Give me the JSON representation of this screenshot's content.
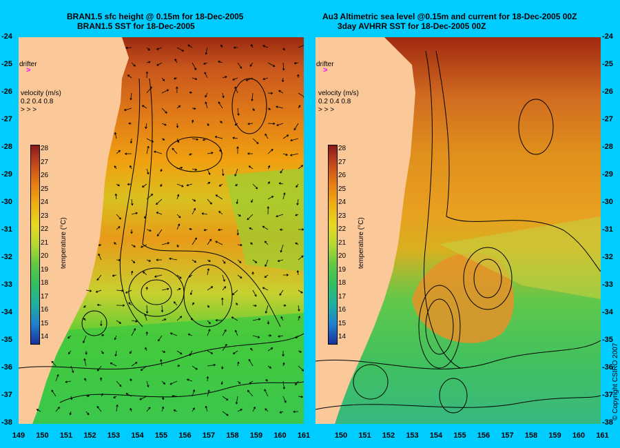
{
  "left_panel": {
    "title_line1": "BRAN1.5 sfc height @ 0.15m for 18-Dec-2005",
    "title_line2": "BRAN1.5 SST for 18-Dec-2005"
  },
  "right_panel": {
    "title_line1": "Au3 Altimetric sea level  @0.15m and current for 18-Dec-2005 00Z",
    "title_line2": "3day AVHRR SST for 18-Dec-2005 00Z"
  },
  "legend": {
    "drifter_label": "drifter",
    "velocity_label": "velocity (m/s)",
    "velocity_values": "0.2 0.4 0.8",
    "colorbar_title": "temperature (°C)",
    "colorbar_ticks": [
      "28",
      "27",
      "26",
      "25",
      "24",
      "23",
      "22",
      "21",
      "20",
      "19",
      "18",
      "17",
      "16",
      "15",
      "14"
    ],
    "colors": {
      "warm": "#8b1a1a",
      "mid": "#f0a000",
      "cool": "#2ecc40",
      "cold": "#1a3399",
      "land": "#fbc89a",
      "background": "#00ccff",
      "drifter": "#ff00ff"
    }
  },
  "axes": {
    "latitude_labels": [
      "-24",
      "-25",
      "-26",
      "-27",
      "-28",
      "-29",
      "-30",
      "-31",
      "-32",
      "-33",
      "-34",
      "-35",
      "-36",
      "-37",
      "-38"
    ],
    "left_longitude_labels": [
      "149",
      "150",
      "151",
      "152",
      "153",
      "154",
      "155",
      "156",
      "157",
      "158",
      "159",
      "160",
      "161"
    ],
    "right_longitude_labels": [
      "150",
      "151",
      "152",
      "153",
      "154",
      "155",
      "156",
      "157",
      "158",
      "159",
      "160",
      "161"
    ]
  },
  "copyright": "© Copyright CSIRO 2007"
}
